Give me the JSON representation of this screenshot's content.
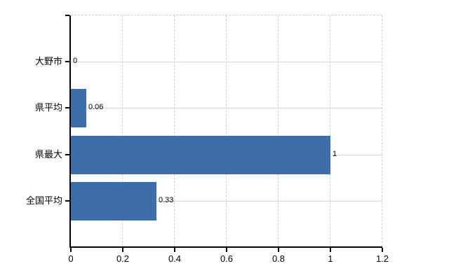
{
  "chart_data": {
    "type": "bar",
    "orientation": "horizontal",
    "title": "",
    "xlabel": "",
    "ylabel": "",
    "categories": [
      "大野市",
      "県平均",
      "県最大",
      "全国平均"
    ],
    "values": [
      0,
      0.06,
      1,
      0.33
    ],
    "value_labels": [
      "0",
      "0.06",
      "1",
      "0.33"
    ],
    "xlim": [
      0,
      1.2
    ],
    "x_ticks": [
      0,
      0.2,
      0.4,
      0.6,
      0.8,
      1,
      1.2
    ],
    "x_tick_labels": [
      "0",
      "0.2",
      "0.4",
      "0.6",
      "0.8",
      "1",
      "1.2"
    ],
    "grid": true,
    "legend": false,
    "colors": {
      "bar": "#3d6ea9",
      "axis": "#000000",
      "h_gridline": "#d3dbd3",
      "v_gridline": "#d8ccd4",
      "background": "#ffffff",
      "text": "#000000"
    }
  }
}
